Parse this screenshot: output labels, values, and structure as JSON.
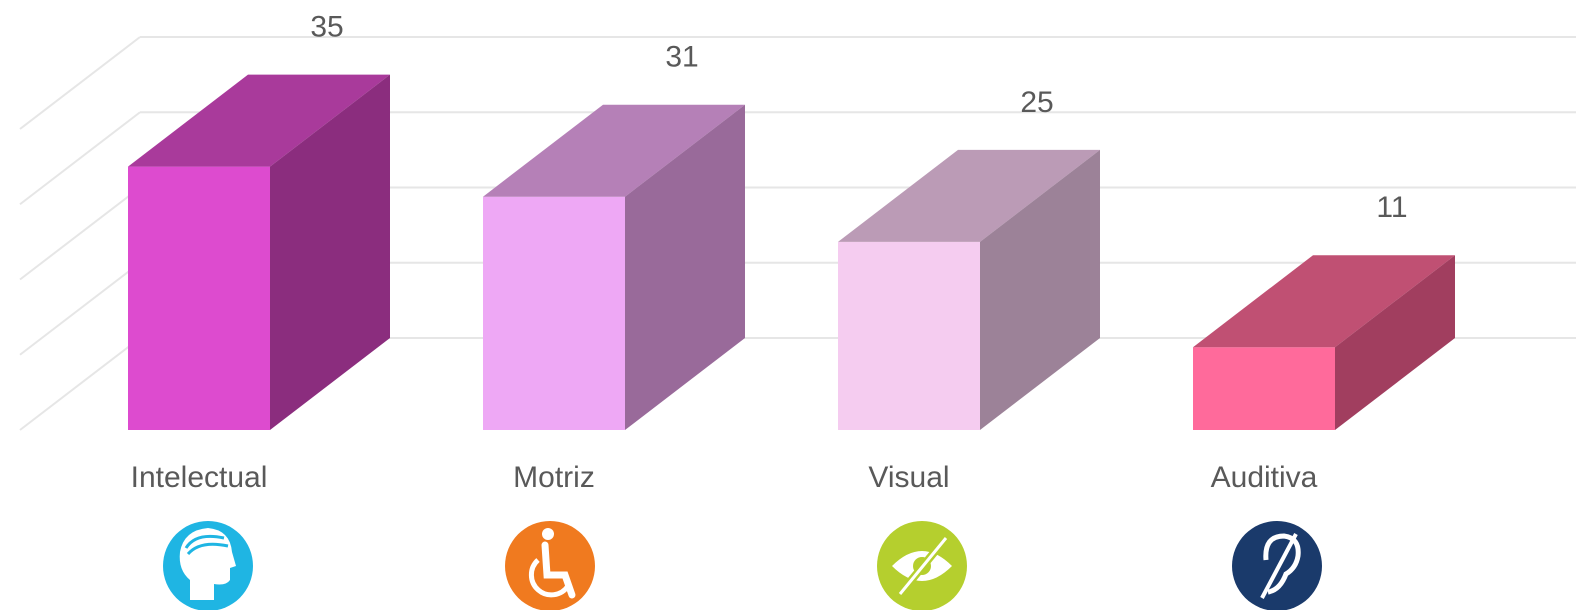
{
  "chart_data": {
    "type": "bar3d",
    "categories": [
      "Intelectual",
      "Motriz",
      "Visual",
      "Auditiva"
    ],
    "values": [
      35,
      31,
      25,
      11
    ],
    "colors": [
      "#dd4bcf",
      "#eea8f5",
      "#f5ccf0",
      "#ff6a9b"
    ],
    "top_colors": [
      "#a93a9b",
      "#b580b7",
      "#bb9bb6",
      "#c05073"
    ],
    "side_colors": [
      "#8b2d7e",
      "#996a9a",
      "#9c8298",
      "#a13e5f"
    ],
    "ylim": [
      0,
      40
    ],
    "yticks": [
      0,
      10,
      20,
      30,
      40
    ],
    "grid": true
  }
}
